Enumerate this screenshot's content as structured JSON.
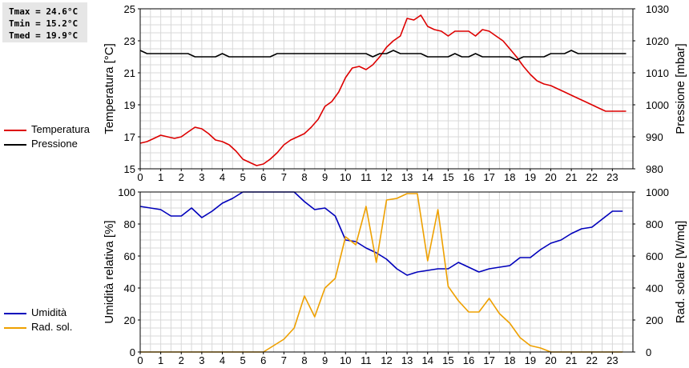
{
  "stats": {
    "tmax": "Tmax = 24.6°C",
    "tmin": "Tmin = 15.2°C",
    "tmed": "Tmed = 19.9°C"
  },
  "colors": {
    "temperatura": "#dd0000",
    "pressione": "#000000",
    "umidita": "#0000bb",
    "radiazione": "#eea000",
    "grid": "#d8d8d8"
  },
  "legend_top": [
    {
      "label": "Temperatura",
      "color": "#dd0000"
    },
    {
      "label": "Pressione",
      "color": "#000000"
    }
  ],
  "legend_bottom": [
    {
      "label": "Umidità",
      "color": "#0000bb"
    },
    {
      "label": "Rad. sol.",
      "color": "#eea000"
    }
  ],
  "chart_data": [
    {
      "type": "line",
      "ylabel_left": "Temperatura [°C]",
      "ylabel_right": "Pressione [mbar]",
      "xlim": [
        0,
        24
      ],
      "xticks": [
        "0",
        "1",
        "2",
        "3",
        "4",
        "5",
        "6",
        "7",
        "8",
        "9",
        "10",
        "11",
        "12",
        "13",
        "14",
        "15",
        "16",
        "17",
        "18",
        "19",
        "20",
        "21",
        "22",
        "23"
      ],
      "ylim_left": [
        15,
        25
      ],
      "yticks_left": [
        "15",
        "17",
        "19",
        "21",
        "23",
        "25"
      ],
      "ylim_right": [
        980,
        1030
      ],
      "yticks_right": [
        "980",
        "990",
        "1000",
        "1010",
        "1020",
        "1030"
      ],
      "grid": true,
      "series": [
        {
          "name": "Temperatura",
          "axis": "left",
          "color": "#dd0000",
          "x": [
            0,
            0.33,
            0.67,
            1,
            1.33,
            1.67,
            2,
            2.33,
            2.67,
            3,
            3.33,
            3.67,
            4,
            4.33,
            4.67,
            5,
            5.33,
            5.67,
            6,
            6.33,
            6.67,
            7,
            7.33,
            7.67,
            8,
            8.33,
            8.67,
            9,
            9.33,
            9.67,
            10,
            10.33,
            10.67,
            11,
            11.33,
            11.67,
            12,
            12.33,
            12.67,
            13,
            13.33,
            13.67,
            14,
            14.33,
            14.67,
            15,
            15.33,
            15.67,
            16,
            16.33,
            16.67,
            17,
            17.33,
            17.67,
            18,
            18.33,
            18.67,
            19,
            19.33,
            19.67,
            20,
            20.33,
            20.67,
            21,
            21.33,
            21.67,
            22,
            22.33,
            22.67,
            23,
            23.33,
            23.67
          ],
          "y": [
            16.6,
            16.7,
            16.9,
            17.1,
            17.0,
            16.9,
            17.0,
            17.3,
            17.6,
            17.5,
            17.2,
            16.8,
            16.7,
            16.5,
            16.1,
            15.6,
            15.4,
            15.2,
            15.3,
            15.6,
            16.0,
            16.5,
            16.8,
            17.0,
            17.2,
            17.6,
            18.1,
            18.9,
            19.2,
            19.8,
            20.7,
            21.3,
            21.4,
            21.2,
            21.5,
            22.0,
            22.6,
            23.0,
            23.3,
            24.4,
            24.3,
            24.6,
            23.9,
            23.7,
            23.6,
            23.3,
            23.6,
            23.6,
            23.6,
            23.3,
            23.7,
            23.6,
            23.3,
            23.0,
            22.5,
            22.0,
            21.4,
            20.9,
            20.5,
            20.3,
            20.2,
            20.0,
            19.8,
            19.6,
            19.4,
            19.2,
            19.0,
            18.8,
            18.6,
            18.6,
            18.6,
            18.6
          ]
        },
        {
          "name": "Pressione",
          "axis": "right",
          "color": "#000000",
          "x": [
            0,
            0.33,
            0.67,
            1,
            1.33,
            1.67,
            2,
            2.33,
            2.67,
            3,
            3.33,
            3.67,
            4,
            4.33,
            4.67,
            5,
            5.33,
            5.67,
            6,
            6.33,
            6.67,
            7,
            7.33,
            7.67,
            8,
            8.33,
            8.67,
            9,
            9.33,
            9.67,
            10,
            10.33,
            10.67,
            11,
            11.33,
            11.67,
            12,
            12.33,
            12.67,
            13,
            13.33,
            13.67,
            14,
            14.33,
            14.67,
            15,
            15.33,
            15.67,
            16,
            16.33,
            16.67,
            17,
            17.33,
            17.67,
            18,
            18.33,
            18.67,
            19,
            19.33,
            19.67,
            20,
            20.33,
            20.67,
            21,
            21.33,
            21.67,
            22,
            22.33,
            22.67,
            23,
            23.33,
            23.67
          ],
          "y": [
            1017,
            1016,
            1016,
            1016,
            1016,
            1016,
            1016,
            1016,
            1015,
            1015,
            1015,
            1015,
            1016,
            1015,
            1015,
            1015,
            1015,
            1015,
            1015,
            1015,
            1016,
            1016,
            1016,
            1016,
            1016,
            1016,
            1016,
            1016,
            1016,
            1016,
            1016,
            1016,
            1016,
            1016,
            1015,
            1016,
            1016,
            1017,
            1016,
            1016,
            1016,
            1016,
            1015,
            1015,
            1015,
            1015,
            1016,
            1015,
            1015,
            1016,
            1015,
            1015,
            1015,
            1015,
            1015,
            1014,
            1015,
            1015,
            1015,
            1015,
            1016,
            1016,
            1016,
            1017,
            1016,
            1016,
            1016,
            1016,
            1016,
            1016,
            1016,
            1016
          ]
        }
      ]
    },
    {
      "type": "line",
      "ylabel_left": "Umidità relativa [%]",
      "ylabel_right": "Rad. solare [W/mq]",
      "xlim": [
        0,
        24
      ],
      "xticks": [
        "0",
        "1",
        "2",
        "3",
        "4",
        "5",
        "6",
        "7",
        "8",
        "9",
        "10",
        "11",
        "12",
        "13",
        "14",
        "15",
        "16",
        "17",
        "18",
        "19",
        "20",
        "21",
        "22",
        "23"
      ],
      "ylim_left": [
        0,
        100
      ],
      "yticks_left": [
        "0",
        "20",
        "40",
        "60",
        "80",
        "100"
      ],
      "ylim_right": [
        0,
        1000
      ],
      "yticks_right": [
        "0",
        "200",
        "400",
        "600",
        "800",
        "1000"
      ],
      "grid": true,
      "series": [
        {
          "name": "Umidità",
          "axis": "left",
          "color": "#0000bb",
          "x": [
            0,
            0.5,
            1,
            1.5,
            2,
            2.5,
            3,
            3.5,
            4,
            4.5,
            5,
            5.5,
            6,
            6.5,
            7,
            7.5,
            8,
            8.5,
            9,
            9.5,
            10,
            10.5,
            11,
            11.5,
            12,
            12.5,
            13,
            13.5,
            14,
            14.5,
            15,
            15.5,
            16,
            16.5,
            17,
            17.5,
            18,
            18.5,
            19,
            19.5,
            20,
            20.5,
            21,
            21.5,
            22,
            22.5,
            23,
            23.5
          ],
          "y": [
            91,
            90,
            89,
            85,
            85,
            90,
            84,
            88,
            93,
            96,
            100,
            100,
            100,
            100,
            100,
            100,
            94,
            89,
            90,
            85,
            70,
            69,
            65,
            62,
            58,
            52,
            48,
            50,
            51,
            52,
            52,
            56,
            53,
            50,
            52,
            53,
            54,
            59,
            59,
            64,
            68,
            70,
            74,
            77,
            78,
            83,
            88,
            88
          ]
        },
        {
          "name": "Rad. sol.",
          "axis": "right",
          "color": "#eea000",
          "x": [
            0,
            0.5,
            1,
            1.5,
            2,
            2.5,
            3,
            3.5,
            4,
            4.5,
            5,
            5.5,
            6,
            6.5,
            7,
            7.5,
            8,
            8.5,
            9,
            9.5,
            10,
            10.5,
            11,
            11.5,
            12,
            12.5,
            13,
            13.5,
            14,
            14.5,
            15,
            15.5,
            16,
            16.5,
            17,
            17.5,
            18,
            18.5,
            19,
            19.5,
            20,
            20.5,
            21,
            21.5,
            22,
            22.5,
            23,
            23.5
          ],
          "y": [
            0,
            0,
            0,
            0,
            0,
            0,
            0,
            0,
            0,
            0,
            0,
            0,
            0,
            40,
            80,
            150,
            350,
            220,
            400,
            460,
            720,
            670,
            910,
            560,
            950,
            960,
            990,
            990,
            570,
            890,
            410,
            320,
            250,
            250,
            335,
            240,
            180,
            90,
            40,
            25,
            0,
            0,
            0,
            0,
            0,
            0,
            0,
            0
          ]
        }
      ]
    }
  ]
}
